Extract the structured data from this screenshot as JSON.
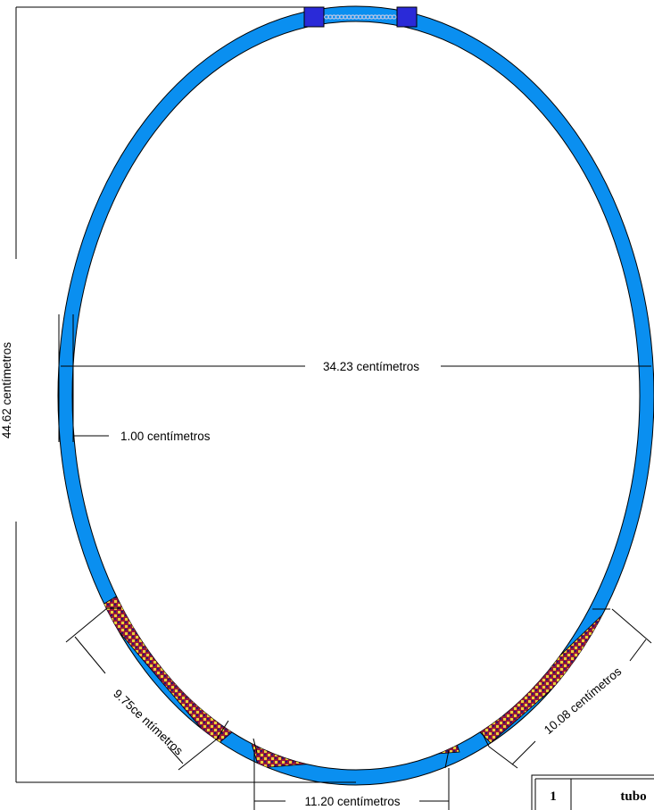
{
  "dimensions": {
    "height": "44.62 centímetros",
    "width": "34.23 centímetros",
    "thickness": "1.00 centímetros",
    "segment_left": "9.75ce ntímetros",
    "segment_bottom": "11.20 centímetros",
    "segment_right": "10.08 centímetros"
  },
  "table": {
    "row1_number": "1",
    "row1_name": "tubo"
  },
  "colors": {
    "tube": "#0a8ff0",
    "clasp": "#2a2ad8",
    "pattern_base": "#9a1a3a",
    "pattern_accent": "#e8d23a",
    "chain": "#b8c6e6"
  }
}
